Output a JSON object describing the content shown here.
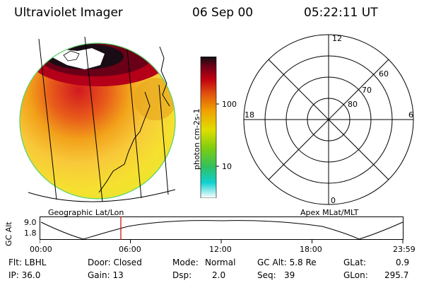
{
  "header": {
    "instrument": "Ultraviolet Imager",
    "date": "06 Sep 00",
    "time": "05:22:11 UT"
  },
  "colorbar": {
    "unit_label": "photon cm-2s-1",
    "ticks": [
      "100",
      "10"
    ],
    "stops": [
      "#ffffff",
      "#0fd0d0",
      "#30c060",
      "#7ccd12",
      "#dede00",
      "#f0a000",
      "#e05010",
      "#c00010",
      "#700018",
      "#101010"
    ]
  },
  "image_panel": {
    "caption": "Geographic Lat/Lon"
  },
  "polar_panel": {
    "caption": "Apex MLat/MLT",
    "mlt_labels": [
      "12",
      "6",
      "0",
      "18"
    ],
    "mlat_labels": [
      "60",
      "70",
      "80"
    ]
  },
  "altitude_plot": {
    "ylabel": "GC Alt",
    "yticks": [
      "9.0",
      "1.8"
    ],
    "xticks": [
      "00:00",
      "06:00",
      "12:00",
      "18:00",
      "23:59"
    ],
    "marker_time": "05:22",
    "marker_color": "#d00000"
  },
  "info": {
    "flt": "Flt: LBHL",
    "ip": "IP: 36.0",
    "door": "Door: Closed",
    "gain": "Gain: 13",
    "mode_label": "Mode:",
    "mode_value": "Normal",
    "dsp_label": "Dsp:",
    "dsp_value": "2.0",
    "gcalt": "GC Alt: 5.8 Re",
    "seq_label": "Seq:",
    "seq_value": "39",
    "glat_label": "GLat:",
    "glat_value": "0.9",
    "glon_label": "GLon:",
    "glon_value": "295.7"
  }
}
